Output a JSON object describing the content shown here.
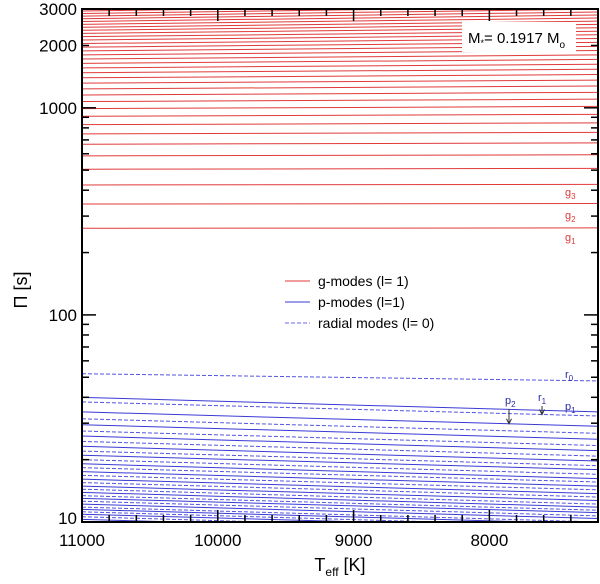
{
  "chart_data": {
    "type": "line",
    "xlabel": {
      "main": "T",
      "sub": "eff",
      "unit": " [K]"
    },
    "ylabel": "Π [s]",
    "xlim": [
      11000,
      7200
    ],
    "ylim": [
      10,
      3000
    ],
    "yscale": "log",
    "x_reversed": true,
    "grid": false,
    "x_ticks": [
      "11000",
      "10000",
      "9000",
      "8000"
    ],
    "x_tick_values": [
      11000,
      10000,
      9000,
      8000
    ],
    "y_ticks": [
      "10",
      "100",
      "1000",
      "2000",
      "3000"
    ],
    "y_tick_values": [
      10,
      100,
      1000,
      2000,
      3000
    ],
    "annotation": {
      "text": "M",
      "sub1": "*",
      "rest": "= 0.1917 M",
      "sub2": "o"
    },
    "legend": {
      "placement": "center",
      "entries": [
        {
          "label": "g-modes (l= 1)",
          "color": "#e03a3a",
          "dash": false
        },
        {
          "label": "p-modes (l=1)",
          "color": "#3a3ad6",
          "dash": false
        },
        {
          "label": "radial modes (l= 0)",
          "color": "#6a6ae6",
          "dash": true
        }
      ]
    },
    "colors": {
      "g": "#e03a3a",
      "p": "#3a3ad6",
      "r": "#5555dd"
    },
    "x": [
      11000,
      7200
    ],
    "series_g": [
      [
        262,
        263
      ],
      [
        343,
        345
      ],
      [
        424,
        427
      ],
      [
        505,
        510
      ],
      [
        586,
        593
      ],
      [
        667,
        677
      ],
      [
        748,
        761
      ],
      [
        829,
        846
      ],
      [
        910,
        930
      ],
      [
        991,
        1016
      ],
      [
        1072,
        1101
      ],
      [
        1153,
        1188
      ],
      [
        1234,
        1274
      ],
      [
        1315,
        1361
      ],
      [
        1396,
        1448
      ],
      [
        1477,
        1536
      ],
      [
        1558,
        1624
      ],
      [
        1639,
        1713
      ],
      [
        1720,
        1802
      ],
      [
        1801,
        1891
      ],
      [
        1882,
        1981
      ],
      [
        1963,
        2071
      ],
      [
        2044,
        2162
      ],
      [
        2125,
        2253
      ],
      [
        2206,
        2344
      ],
      [
        2287,
        2436
      ],
      [
        2368,
        2528
      ],
      [
        2449,
        2620
      ],
      [
        2530,
        2713
      ],
      [
        2611,
        2807
      ],
      [
        2692,
        2901
      ],
      [
        2773,
        2995
      ],
      [
        2854,
        3089
      ],
      [
        2935,
        3184
      ]
    ],
    "series_p": [
      [
        40,
        34
      ],
      [
        34,
        29
      ],
      [
        29.5,
        25.1
      ],
      [
        26,
        22.1
      ],
      [
        23.2,
        19.7
      ],
      [
        21,
        17.9
      ],
      [
        19.1,
        16.2
      ],
      [
        17.5,
        14.9
      ],
      [
        16.1,
        13.7
      ],
      [
        14.9,
        12.7
      ],
      [
        13.9,
        11.8
      ],
      [
        13.0,
        11.1
      ],
      [
        12.2,
        10.4
      ],
      [
        11.5,
        9.8
      ],
      [
        10.9,
        9.3
      ],
      [
        10.3,
        8.8
      ],
      [
        9.8,
        8.3
      ]
    ],
    "series_r": [
      [
        52,
        48
      ],
      [
        38,
        32.5
      ],
      [
        31.5,
        26.8
      ],
      [
        27.5,
        23.4
      ],
      [
        24.5,
        20.8
      ],
      [
        22,
        18.7
      ],
      [
        20,
        17
      ],
      [
        18.3,
        15.6
      ],
      [
        16.8,
        14.3
      ],
      [
        15.5,
        13.2
      ],
      [
        14.4,
        12.2
      ],
      [
        13.4,
        11.4
      ],
      [
        12.6,
        10.7
      ],
      [
        11.8,
        10.0
      ],
      [
        11.2,
        9.5
      ],
      [
        10.6,
        9.0
      ],
      [
        10.0,
        8.5
      ]
    ],
    "mode_labels": [
      {
        "letter": "g",
        "index": "1",
        "type": "g",
        "k": 0
      },
      {
        "letter": "g",
        "index": "2",
        "type": "g",
        "k": 1
      },
      {
        "letter": "g",
        "index": "3",
        "type": "g",
        "k": 2
      },
      {
        "letter": "r",
        "index": "0",
        "type": "r",
        "k": 0
      },
      {
        "letter": "p",
        "index": "1",
        "type": "p",
        "k": 0
      },
      {
        "letter": "r",
        "index": "1",
        "type": "r",
        "k": 1,
        "arrow": true
      },
      {
        "letter": "p",
        "index": "2",
        "type": "p",
        "k": 1,
        "arrow": true
      }
    ]
  }
}
